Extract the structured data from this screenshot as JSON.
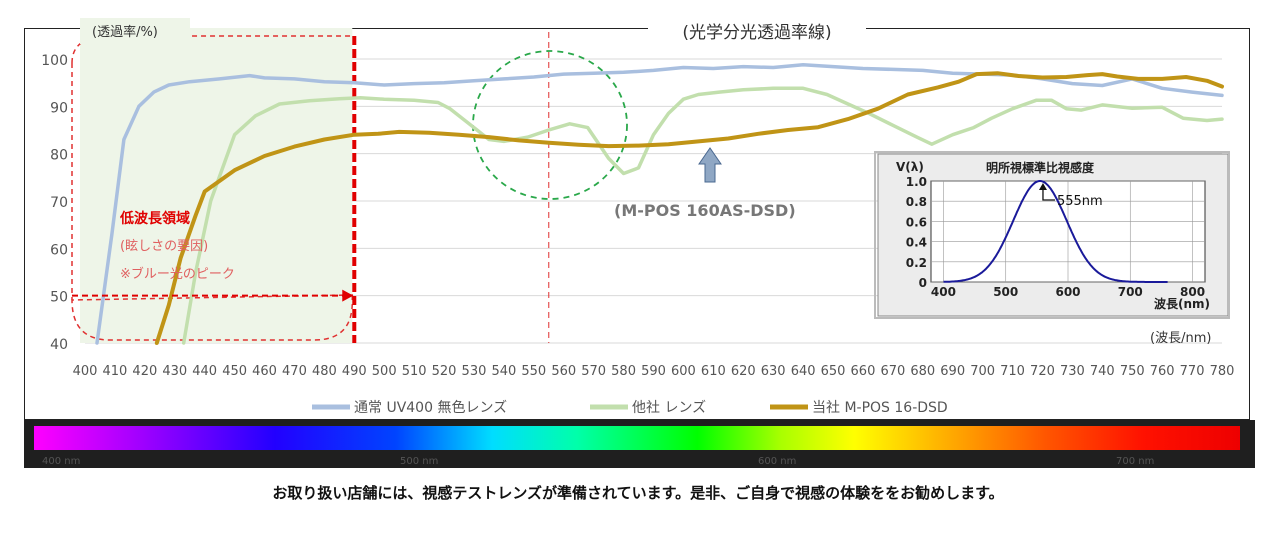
{
  "chart_data": {
    "type": "line",
    "title": "(光学分光透過率線)",
    "ylabel": "(透過率/%)",
    "xlabel": "(波長/nm)",
    "ylim": [
      40,
      100
    ],
    "yticks": [
      40,
      50,
      60,
      70,
      80,
      90,
      100
    ],
    "xlim": [
      400,
      780
    ],
    "xticks": [
      400,
      410,
      420,
      430,
      440,
      450,
      460,
      470,
      480,
      490,
      500,
      510,
      520,
      530,
      540,
      550,
      560,
      570,
      580,
      590,
      600,
      610,
      620,
      630,
      640,
      650,
      660,
      670,
      680,
      690,
      700,
      710,
      720,
      730,
      740,
      750,
      760,
      770,
      780
    ],
    "grid": "horizontal",
    "legend": "bottom",
    "series": [
      {
        "name": "通常 UV400 無色レンズ",
        "color": "#a9bfdf",
        "points": [
          [
            404,
            40
          ],
          [
            409,
            63
          ],
          [
            413,
            83
          ],
          [
            418,
            90
          ],
          [
            423,
            93
          ],
          [
            428,
            94.5
          ],
          [
            435,
            95.2
          ],
          [
            445,
            95.8
          ],
          [
            455,
            96.5
          ],
          [
            460,
            96
          ],
          [
            470,
            95.8
          ],
          [
            480,
            95.2
          ],
          [
            490,
            95
          ],
          [
            500,
            94.5
          ],
          [
            510,
            94.8
          ],
          [
            520,
            95
          ],
          [
            530,
            95.4
          ],
          [
            540,
            95.8
          ],
          [
            550,
            96.2
          ],
          [
            560,
            96.8
          ],
          [
            570,
            97
          ],
          [
            580,
            97.2
          ],
          [
            590,
            97.6
          ],
          [
            600,
            98.2
          ],
          [
            610,
            98
          ],
          [
            620,
            98.4
          ],
          [
            630,
            98.2
          ],
          [
            640,
            98.8
          ],
          [
            650,
            98.4
          ],
          [
            660,
            98
          ],
          [
            670,
            97.8
          ],
          [
            680,
            97.6
          ],
          [
            690,
            97
          ],
          [
            700,
            96.8
          ],
          [
            710,
            96.6
          ],
          [
            720,
            95.8
          ],
          [
            730,
            94.8
          ],
          [
            740,
            94.4
          ],
          [
            750,
            95.8
          ],
          [
            760,
            93.8
          ],
          [
            770,
            93
          ],
          [
            780,
            92.3
          ]
        ]
      },
      {
        "name": "他社 レンズ",
        "color": "#c2dfad",
        "points": [
          [
            433,
            40
          ],
          [
            437,
            55
          ],
          [
            442,
            70
          ],
          [
            450,
            84
          ],
          [
            457,
            88
          ],
          [
            465,
            90.5
          ],
          [
            475,
            91.2
          ],
          [
            485,
            91.6
          ],
          [
            492,
            91.8
          ],
          [
            500,
            91.5
          ],
          [
            510,
            91.3
          ],
          [
            518,
            90.8
          ],
          [
            522,
            89.5
          ],
          [
            530,
            85.5
          ],
          [
            535,
            83
          ],
          [
            540,
            82.6
          ],
          [
            548,
            83.5
          ],
          [
            555,
            85
          ],
          [
            562,
            86.3
          ],
          [
            568,
            85.5
          ],
          [
            575,
            79
          ],
          [
            580,
            75.8
          ],
          [
            585,
            77
          ],
          [
            590,
            84
          ],
          [
            595,
            88.5
          ],
          [
            600,
            91.5
          ],
          [
            605,
            92.5
          ],
          [
            612,
            93
          ],
          [
            620,
            93.5
          ],
          [
            630,
            93.8
          ],
          [
            640,
            93.8
          ],
          [
            648,
            92.5
          ],
          [
            655,
            90.5
          ],
          [
            662,
            88.5
          ],
          [
            670,
            86
          ],
          [
            678,
            83.5
          ],
          [
            683,
            82
          ],
          [
            690,
            84
          ],
          [
            697,
            85.5
          ],
          [
            703,
            87.5
          ],
          [
            710,
            89.5
          ],
          [
            718,
            91.3
          ],
          [
            723,
            91.3
          ],
          [
            728,
            89.5
          ],
          [
            733,
            89.2
          ],
          [
            740,
            90.3
          ],
          [
            750,
            89.6
          ],
          [
            760,
            89.8
          ],
          [
            767,
            87.5
          ],
          [
            775,
            87
          ],
          [
            780,
            87.3
          ]
        ]
      },
      {
        "name": "当社 M-POS 16-DSD",
        "color": "#c09416",
        "points": [
          [
            424,
            40
          ],
          [
            428,
            48
          ],
          [
            432,
            58
          ],
          [
            437,
            67
          ],
          [
            440,
            72
          ],
          [
            450,
            76.5
          ],
          [
            460,
            79.5
          ],
          [
            470,
            81.5
          ],
          [
            480,
            83
          ],
          [
            490,
            84
          ],
          [
            498,
            84.2
          ],
          [
            505,
            84.6
          ],
          [
            515,
            84.4
          ],
          [
            525,
            84
          ],
          [
            535,
            83.5
          ],
          [
            545,
            82.8
          ],
          [
            555,
            82.3
          ],
          [
            565,
            81.9
          ],
          [
            575,
            81.6
          ],
          [
            585,
            81.7
          ],
          [
            595,
            82
          ],
          [
            605,
            82.6
          ],
          [
            615,
            83.2
          ],
          [
            625,
            84.2
          ],
          [
            635,
            85
          ],
          [
            645,
            85.6
          ],
          [
            655,
            87.3
          ],
          [
            665,
            89.5
          ],
          [
            675,
            92.5
          ],
          [
            685,
            94
          ],
          [
            692,
            95.2
          ],
          [
            698,
            96.8
          ],
          [
            705,
            97
          ],
          [
            712,
            96.4
          ],
          [
            720,
            96.1
          ],
          [
            728,
            96.2
          ],
          [
            735,
            96.6
          ],
          [
            740,
            96.8
          ],
          [
            745,
            96.3
          ],
          [
            752,
            95.8
          ],
          [
            760,
            95.8
          ],
          [
            768,
            96.2
          ],
          [
            775,
            95.4
          ],
          [
            780,
            94.2
          ]
        ]
      }
    ],
    "annotations": {
      "region_title": "低波長領域",
      "region_sub1": "(眩しさの要因)",
      "region_sub2": "※ブルー光のピーク",
      "product_label": "(M-POS 160AS-DSD)",
      "region_end_nm": 490,
      "dash_marker_nm": 555,
      "arrow_level": 50
    },
    "inset": {
      "title": "明所視標準比視感度",
      "ylabel": "V(λ)",
      "xlabel": "波長(nm)",
      "peak_label": "555nm",
      "yticks": [
        "1.0",
        "0.8",
        "0.6",
        "0.4",
        "0.2",
        "0"
      ],
      "xticks": [
        "400",
        "500",
        "600",
        "700",
        "800"
      ],
      "peak_nm": 555,
      "sigma_nm": 43
    }
  },
  "spectrum": {
    "labels": [
      "400 nm",
      "500 nm",
      "600 nm",
      "700 nm"
    ]
  },
  "footer": {
    "caption": "お取り扱い店舗には、視感テストレンズが準備されています。是非、ご自身で視感の体験ををお勧めします。"
  }
}
